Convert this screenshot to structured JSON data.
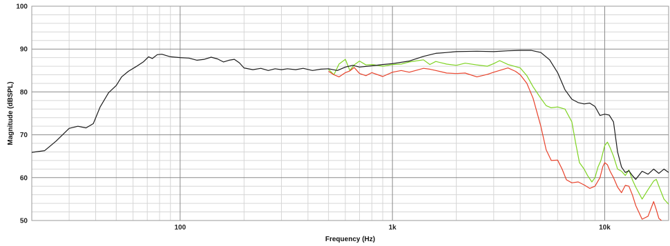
{
  "chart_data": {
    "type": "line",
    "title": "",
    "xlabel": "Frequency (Hz)",
    "ylabel": "Magnitude (dBSPL)",
    "x_scale": "log",
    "xlim": [
      20,
      20000
    ],
    "ylim": [
      50,
      100
    ],
    "grid": true,
    "x_ticks": [
      {
        "value": 100,
        "label": "100"
      },
      {
        "value": 1000,
        "label": "1k"
      },
      {
        "value": 10000,
        "label": "10k"
      }
    ],
    "y_ticks": [
      {
        "value": 50,
        "label": "50"
      },
      {
        "value": 60,
        "label": "60"
      },
      {
        "value": 70,
        "label": "70"
      },
      {
        "value": 80,
        "label": "80"
      },
      {
        "value": 90,
        "label": "90"
      },
      {
        "value": 100,
        "label": "100"
      }
    ],
    "series": [
      {
        "color": "#1a1a1a",
        "points": [
          [
            20,
            65.9
          ],
          [
            23,
            66.3
          ],
          [
            26,
            68.5
          ],
          [
            30,
            71.5
          ],
          [
            33,
            72.0
          ],
          [
            36,
            71.6
          ],
          [
            39,
            72.6
          ],
          [
            42,
            76.5
          ],
          [
            46,
            79.8
          ],
          [
            50,
            81.5
          ],
          [
            53,
            83.5
          ],
          [
            57,
            84.8
          ],
          [
            62,
            85.9
          ],
          [
            67,
            87.0
          ],
          [
            71,
            88.2
          ],
          [
            74,
            87.8
          ],
          [
            78,
            88.7
          ],
          [
            82,
            88.8
          ],
          [
            90,
            88.2
          ],
          [
            100,
            88.0
          ],
          [
            110,
            87.9
          ],
          [
            120,
            87.4
          ],
          [
            130,
            87.6
          ],
          [
            140,
            88.1
          ],
          [
            150,
            87.7
          ],
          [
            160,
            87.0
          ],
          [
            170,
            87.4
          ],
          [
            180,
            87.6
          ],
          [
            190,
            86.8
          ],
          [
            200,
            85.6
          ],
          [
            220,
            85.2
          ],
          [
            240,
            85.5
          ],
          [
            260,
            85.0
          ],
          [
            280,
            85.4
          ],
          [
            300,
            85.2
          ],
          [
            320,
            85.4
          ],
          [
            350,
            85.2
          ],
          [
            380,
            85.5
          ],
          [
            420,
            85.0
          ],
          [
            460,
            85.3
          ],
          [
            500,
            85.4
          ],
          [
            550,
            85.0
          ],
          [
            600,
            85.8
          ],
          [
            650,
            86.2
          ],
          [
            700,
            85.8
          ],
          [
            800,
            86.1
          ],
          [
            900,
            86.4
          ],
          [
            1000,
            86.6
          ],
          [
            1200,
            87.2
          ],
          [
            1400,
            88.3
          ],
          [
            1600,
            89.0
          ],
          [
            1800,
            89.2
          ],
          [
            2000,
            89.4
          ],
          [
            2500,
            89.5
          ],
          [
            3000,
            89.4
          ],
          [
            3500,
            89.6
          ],
          [
            4000,
            89.7
          ],
          [
            4500,
            89.7
          ],
          [
            5000,
            89.2
          ],
          [
            5500,
            87.5
          ],
          [
            6000,
            84.5
          ],
          [
            6500,
            80.5
          ],
          [
            7000,
            78.3
          ],
          [
            7500,
            77.5
          ],
          [
            8000,
            77.2
          ],
          [
            8500,
            77.4
          ],
          [
            9000,
            76.6
          ],
          [
            9500,
            74.5
          ],
          [
            10000,
            74.8
          ],
          [
            10500,
            74.6
          ],
          [
            11000,
            73.0
          ],
          [
            11500,
            66.0
          ],
          [
            12000,
            62.5
          ],
          [
            12500,
            61.2
          ],
          [
            13000,
            61.6
          ],
          [
            13500,
            60.5
          ],
          [
            14000,
            59.6
          ],
          [
            15000,
            61.5
          ],
          [
            16000,
            60.8
          ],
          [
            17000,
            62.0
          ],
          [
            18000,
            61.0
          ],
          [
            19000,
            62.0
          ],
          [
            20000,
            61.2
          ]
        ]
      },
      {
        "color": "#7ed321",
        "points": [
          [
            500,
            85.3
          ],
          [
            530,
            84.0
          ],
          [
            560,
            86.5
          ],
          [
            600,
            87.6
          ],
          [
            630,
            85.0
          ],
          [
            660,
            86.3
          ],
          [
            700,
            87.2
          ],
          [
            750,
            86.3
          ],
          [
            800,
            86.4
          ],
          [
            900,
            86.0
          ],
          [
            1000,
            86.4
          ],
          [
            1100,
            86.5
          ],
          [
            1200,
            87.0
          ],
          [
            1400,
            87.5
          ],
          [
            1500,
            86.4
          ],
          [
            1600,
            87.1
          ],
          [
            1800,
            86.5
          ],
          [
            2000,
            86.2
          ],
          [
            2200,
            86.7
          ],
          [
            2500,
            86.3
          ],
          [
            2800,
            86.0
          ],
          [
            3000,
            86.6
          ],
          [
            3200,
            87.3
          ],
          [
            3500,
            86.4
          ],
          [
            4000,
            85.6
          ],
          [
            4300,
            83.8
          ],
          [
            4600,
            81.2
          ],
          [
            5000,
            78.5
          ],
          [
            5300,
            76.8
          ],
          [
            5600,
            76.3
          ],
          [
            6000,
            76.5
          ],
          [
            6500,
            76.0
          ],
          [
            7000,
            73.0
          ],
          [
            7300,
            68.0
          ],
          [
            7600,
            63.5
          ],
          [
            8000,
            62.0
          ],
          [
            8300,
            60.5
          ],
          [
            8700,
            59.0
          ],
          [
            9000,
            60.0
          ],
          [
            9300,
            62.5
          ],
          [
            9600,
            64.0
          ],
          [
            10000,
            67.5
          ],
          [
            10300,
            68.3
          ],
          [
            10600,
            67.0
          ],
          [
            11000,
            65.0
          ],
          [
            11500,
            62.0
          ],
          [
            12000,
            61.5
          ],
          [
            12500,
            60.5
          ],
          [
            13000,
            61.8
          ],
          [
            13500,
            59.5
          ],
          [
            14000,
            57.8
          ],
          [
            15000,
            55.0
          ],
          [
            16000,
            57.2
          ],
          [
            17000,
            59.2
          ],
          [
            17500,
            59.6
          ],
          [
            18000,
            58.0
          ],
          [
            19000,
            55.0
          ],
          [
            20000,
            53.8
          ]
        ]
      },
      {
        "color": "#e8412a",
        "points": [
          [
            500,
            84.8
          ],
          [
            530,
            84.0
          ],
          [
            560,
            83.5
          ],
          [
            600,
            84.5
          ],
          [
            630,
            84.9
          ],
          [
            660,
            85.7
          ],
          [
            700,
            84.3
          ],
          [
            750,
            83.8
          ],
          [
            800,
            84.5
          ],
          [
            900,
            83.6
          ],
          [
            1000,
            84.6
          ],
          [
            1100,
            85.0
          ],
          [
            1200,
            84.6
          ],
          [
            1400,
            85.5
          ],
          [
            1500,
            85.3
          ],
          [
            1600,
            85.0
          ],
          [
            1800,
            84.4
          ],
          [
            2000,
            84.3
          ],
          [
            2200,
            84.4
          ],
          [
            2500,
            83.5
          ],
          [
            2800,
            84.1
          ],
          [
            3000,
            84.6
          ],
          [
            3500,
            85.6
          ],
          [
            3800,
            84.8
          ],
          [
            4000,
            84.0
          ],
          [
            4300,
            82.0
          ],
          [
            4600,
            78.5
          ],
          [
            5000,
            72.0
          ],
          [
            5300,
            66.5
          ],
          [
            5600,
            64.0
          ],
          [
            6000,
            64.1
          ],
          [
            6300,
            62.0
          ],
          [
            6600,
            59.5
          ],
          [
            7000,
            58.8
          ],
          [
            7500,
            59.0
          ],
          [
            8000,
            58.3
          ],
          [
            8500,
            57.5
          ],
          [
            9000,
            58.0
          ],
          [
            9500,
            60.0
          ],
          [
            9800,
            62.6
          ],
          [
            10000,
            63.5
          ],
          [
            10300,
            63.0
          ],
          [
            10600,
            61.5
          ],
          [
            11000,
            60.0
          ],
          [
            11500,
            57.8
          ],
          [
            12000,
            56.5
          ],
          [
            12500,
            58.2
          ],
          [
            13000,
            58.0
          ],
          [
            13500,
            56.0
          ],
          [
            14000,
            53.5
          ],
          [
            15000,
            50.3
          ],
          [
            16000,
            51.0
          ],
          [
            17000,
            54.4
          ],
          [
            17500,
            52.5
          ],
          [
            18000,
            50.5
          ],
          [
            19000,
            49.5
          ],
          [
            20000,
            49.5
          ]
        ]
      }
    ]
  }
}
